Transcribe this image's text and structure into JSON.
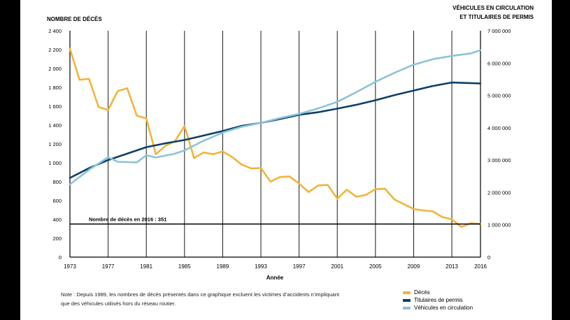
{
  "chart_data": {
    "type": "line",
    "left_axis_title": "NOMBRE DE DÉCÈS",
    "right_axis_title_line1": "VÉHICULES EN CIRCULATION",
    "right_axis_title_line2": "ET TITULAIRES DE PERMIS",
    "xlabel": "Année",
    "x_ticks": [
      "1973",
      "1977",
      "1981",
      "1985",
      "1989",
      "1993",
      "1997",
      "2001",
      "2005",
      "2009",
      "2013",
      "2016"
    ],
    "x_range": [
      1973,
      2016
    ],
    "y_left_range": [
      0,
      2400
    ],
    "y_left_ticks": [
      {
        "value": 0,
        "label": "0"
      },
      {
        "value": 200,
        "label": "200"
      },
      {
        "value": 400,
        "label": "400"
      },
      {
        "value": 600,
        "label": "600"
      },
      {
        "value": 800,
        "label": "800"
      },
      {
        "value": 1000,
        "label": "1 000"
      },
      {
        "value": 1200,
        "label": "1 200"
      },
      {
        "value": 1400,
        "label": "1 400"
      },
      {
        "value": 1600,
        "label": "1 600"
      },
      {
        "value": 1800,
        "label": "1 800"
      },
      {
        "value": 2000,
        "label": "2 000"
      },
      {
        "value": 2200,
        "label": "2 200"
      },
      {
        "value": 2400,
        "label": "2 400"
      }
    ],
    "y_right_range": [
      0,
      7000000
    ],
    "y_right_ticks": [
      {
        "value": 0,
        "label": "0"
      },
      {
        "value": 1000000,
        "label": "1 000 000"
      },
      {
        "value": 2000000,
        "label": "2 000 000"
      },
      {
        "value": 3000000,
        "label": "3 000 000"
      },
      {
        "value": 4000000,
        "label": "4 000 000"
      },
      {
        "value": 5000000,
        "label": "5 000 000"
      },
      {
        "value": 6000000,
        "label": "6 000 000"
      },
      {
        "value": 7000000,
        "label": "7 000 000"
      }
    ],
    "vertical_gridlines": [
      1977,
      1981,
      1985,
      1989,
      1993,
      1997,
      2001,
      2005,
      2009,
      2013
    ],
    "reference_line": {
      "value": 351,
      "label": "Nombre de décès en 2016 : 351"
    },
    "series": [
      {
        "name": "Décès",
        "axis": "left",
        "color": "#F2B43C",
        "points": [
          [
            1973,
            2210
          ],
          [
            1974,
            1880
          ],
          [
            1975,
            1890
          ],
          [
            1976,
            1590
          ],
          [
            1977,
            1560
          ],
          [
            1978,
            1760
          ],
          [
            1979,
            1790
          ],
          [
            1980,
            1500
          ],
          [
            1981,
            1470
          ],
          [
            1982,
            1090
          ],
          [
            1983,
            1180
          ],
          [
            1984,
            1230
          ],
          [
            1985,
            1390
          ],
          [
            1986,
            1050
          ],
          [
            1987,
            1110
          ],
          [
            1988,
            1090
          ],
          [
            1989,
            1120
          ],
          [
            1990,
            1060
          ],
          [
            1991,
            980
          ],
          [
            1992,
            940
          ],
          [
            1993,
            945
          ],
          [
            1994,
            800
          ],
          [
            1995,
            850
          ],
          [
            1996,
            855
          ],
          [
            1997,
            780
          ],
          [
            1998,
            690
          ],
          [
            1999,
            760
          ],
          [
            2000,
            765
          ],
          [
            2001,
            620
          ],
          [
            2002,
            715
          ],
          [
            2003,
            640
          ],
          [
            2004,
            660
          ],
          [
            2005,
            720
          ],
          [
            2006,
            725
          ],
          [
            2007,
            610
          ],
          [
            2008,
            560
          ],
          [
            2009,
            510
          ],
          [
            2010,
            495
          ],
          [
            2011,
            485
          ],
          [
            2012,
            425
          ],
          [
            2013,
            400
          ],
          [
            2014,
            320
          ],
          [
            2015,
            360
          ],
          [
            2016,
            351
          ]
        ]
      },
      {
        "name": "Titulaires de permis",
        "axis": "right",
        "color": "#0E3F66",
        "points": [
          [
            1973,
            2450000
          ],
          [
            1975,
            2750000
          ],
          [
            1977,
            3000000
          ],
          [
            1979,
            3200000
          ],
          [
            1981,
            3400000
          ],
          [
            1983,
            3520000
          ],
          [
            1985,
            3620000
          ],
          [
            1987,
            3760000
          ],
          [
            1989,
            3900000
          ],
          [
            1991,
            4060000
          ],
          [
            1993,
            4150000
          ],
          [
            1995,
            4270000
          ],
          [
            1997,
            4400000
          ],
          [
            1999,
            4480000
          ],
          [
            2001,
            4590000
          ],
          [
            2003,
            4710000
          ],
          [
            2005,
            4850000
          ],
          [
            2007,
            5010000
          ],
          [
            2009,
            5150000
          ],
          [
            2011,
            5290000
          ],
          [
            2013,
            5400000
          ],
          [
            2016,
            5370000
          ]
        ]
      },
      {
        "name": "Véhicules en circulation",
        "axis": "right",
        "color": "#8CC3DA",
        "points": [
          [
            1973,
            2250000
          ],
          [
            1975,
            2700000
          ],
          [
            1977,
            3090000
          ],
          [
            1978,
            2950000
          ],
          [
            1980,
            2930000
          ],
          [
            1981,
            3150000
          ],
          [
            1982,
            3080000
          ],
          [
            1984,
            3200000
          ],
          [
            1985,
            3300000
          ],
          [
            1987,
            3600000
          ],
          [
            1989,
            3850000
          ],
          [
            1991,
            4030000
          ],
          [
            1993,
            4150000
          ],
          [
            1995,
            4300000
          ],
          [
            1997,
            4430000
          ],
          [
            1999,
            4600000
          ],
          [
            2001,
            4800000
          ],
          [
            2003,
            5100000
          ],
          [
            2005,
            5420000
          ],
          [
            2007,
            5700000
          ],
          [
            2009,
            5950000
          ],
          [
            2011,
            6120000
          ],
          [
            2013,
            6220000
          ],
          [
            2015,
            6300000
          ],
          [
            2016,
            6400000
          ]
        ]
      }
    ],
    "legend": {
      "position": "bottom-right",
      "items": [
        {
          "label": "Décès",
          "color": "#F2B43C"
        },
        {
          "label": "Titulaires de permis",
          "color": "#0E3F66"
        },
        {
          "label": "Véhicules en circulation",
          "color": "#8CC3DA"
        }
      ]
    },
    "note_line1": "Note : Depuis 1989, les nombres de décès présentés dans ce graphique excluent les victimes d’accidents n’impliquant",
    "note_line2": "que des véhicules utilisés hors du réseau routier."
  }
}
